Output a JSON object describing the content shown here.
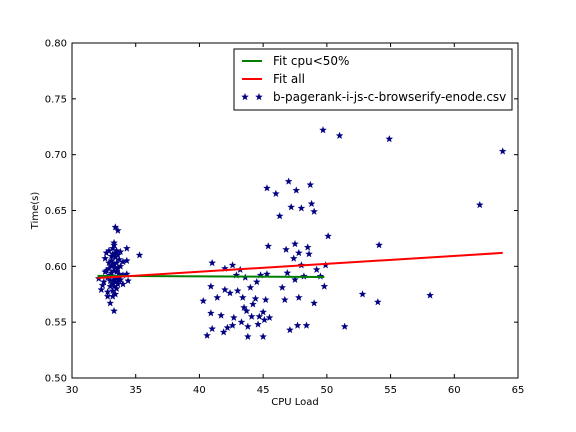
{
  "chart_data": {
    "type": "scatter",
    "xlabel": "CPU Load",
    "ylabel": "Time(s)",
    "xlim": [
      30,
      65
    ],
    "ylim": [
      0.5,
      0.8
    ],
    "xticks": [
      30,
      35,
      40,
      45,
      50,
      55,
      60,
      65
    ],
    "yticks": [
      0.5,
      0.55,
      0.6,
      0.65,
      0.7,
      0.75,
      0.8
    ],
    "xtick_labels": [
      "30",
      "35",
      "40",
      "45",
      "50",
      "55",
      "60",
      "65"
    ],
    "ytick_labels": [
      "0.50",
      "0.55",
      "0.60",
      "0.65",
      "0.70",
      "0.75",
      "0.80"
    ],
    "grid": false,
    "legend_position": "top-right",
    "colors": {
      "fit_low": "#007f00",
      "fit_all": "#ff0000",
      "points": "#000080"
    },
    "lines": [
      {
        "name": "Fit cpu<50%",
        "color": "#007f00",
        "x": [
          32,
          49.8
        ],
        "y": [
          0.5915,
          0.5905
        ]
      },
      {
        "name": "Fit all",
        "color": "#ff0000",
        "x": [
          32,
          63.8
        ],
        "y": [
          0.5895,
          0.612
        ]
      }
    ],
    "series": [
      {
        "name": "b-pagerank-i-js-c-browserify-enode.csv",
        "marker": "star",
        "color": "#000080",
        "points": [
          [
            32.1,
            0.589
          ],
          [
            32.3,
            0.579
          ],
          [
            32.4,
            0.583
          ],
          [
            32.5,
            0.586
          ],
          [
            32.6,
            0.595
          ],
          [
            32.6,
            0.607
          ],
          [
            32.7,
            0.612
          ],
          [
            32.7,
            0.596
          ],
          [
            32.8,
            0.59
          ],
          [
            32.8,
            0.577
          ],
          [
            32.8,
            0.573
          ],
          [
            32.9,
            0.603
          ],
          [
            32.9,
            0.614
          ],
          [
            32.9,
            0.598
          ],
          [
            33.0,
            0.592
          ],
          [
            33.0,
            0.587
          ],
          [
            33.0,
            0.582
          ],
          [
            33.0,
            0.567
          ],
          [
            33.1,
            0.605
          ],
          [
            33.1,
            0.609
          ],
          [
            33.1,
            0.6
          ],
          [
            33.1,
            0.594
          ],
          [
            33.2,
            0.616
          ],
          [
            33.2,
            0.611
          ],
          [
            33.2,
            0.584
          ],
          [
            33.2,
            0.578
          ],
          [
            33.2,
            0.573
          ],
          [
            33.3,
            0.621
          ],
          [
            33.3,
            0.619
          ],
          [
            33.3,
            0.602
          ],
          [
            33.3,
            0.596
          ],
          [
            33.3,
            0.588
          ],
          [
            33.3,
            0.582
          ],
          [
            33.3,
            0.56
          ],
          [
            33.4,
            0.635
          ],
          [
            33.4,
            0.612
          ],
          [
            33.4,
            0.608
          ],
          [
            33.4,
            0.599
          ],
          [
            33.4,
            0.586
          ],
          [
            33.4,
            0.575
          ],
          [
            33.5,
            0.614
          ],
          [
            33.5,
            0.603
          ],
          [
            33.5,
            0.595
          ],
          [
            33.5,
            0.589
          ],
          [
            33.5,
            0.58
          ],
          [
            33.6,
            0.632
          ],
          [
            33.6,
            0.61
          ],
          [
            33.6,
            0.598
          ],
          [
            33.6,
            0.591
          ],
          [
            33.6,
            0.584
          ],
          [
            33.7,
            0.606
          ],
          [
            33.7,
            0.593
          ],
          [
            33.7,
            0.587
          ],
          [
            33.8,
            0.613
          ],
          [
            33.8,
            0.6
          ],
          [
            33.8,
            0.588
          ],
          [
            34.0,
            0.604
          ],
          [
            34.0,
            0.592
          ],
          [
            34.0,
            0.584
          ],
          [
            34.3,
            0.616
          ],
          [
            34.3,
            0.605
          ],
          [
            34.3,
            0.593
          ],
          [
            34.4,
            0.587
          ],
          [
            35.3,
            0.61
          ],
          [
            40.3,
            0.569
          ],
          [
            40.6,
            0.538
          ],
          [
            40.9,
            0.558
          ],
          [
            40.9,
            0.582
          ],
          [
            41.0,
            0.603
          ],
          [
            41.0,
            0.544
          ],
          [
            41.4,
            0.572
          ],
          [
            41.7,
            0.556
          ],
          [
            41.9,
            0.541
          ],
          [
            42.0,
            0.598
          ],
          [
            42.0,
            0.579
          ],
          [
            42.2,
            0.545
          ],
          [
            42.4,
            0.576
          ],
          [
            42.6,
            0.601
          ],
          [
            42.6,
            0.547
          ],
          [
            42.7,
            0.554
          ],
          [
            42.9,
            0.592
          ],
          [
            43.0,
            0.578
          ],
          [
            43.2,
            0.597
          ],
          [
            43.3,
            0.55
          ],
          [
            43.4,
            0.572
          ],
          [
            43.5,
            0.563
          ],
          [
            43.6,
            0.59
          ],
          [
            43.7,
            0.56
          ],
          [
            43.8,
            0.546
          ],
          [
            43.8,
            0.537
          ],
          [
            44.0,
            0.581
          ],
          [
            44.1,
            0.555
          ],
          [
            44.2,
            0.566
          ],
          [
            44.4,
            0.571
          ],
          [
            44.5,
            0.586
          ],
          [
            44.6,
            0.548
          ],
          [
            44.7,
            0.555
          ],
          [
            44.8,
            0.592
          ],
          [
            45.0,
            0.537
          ],
          [
            45.0,
            0.559
          ],
          [
            45.1,
            0.552
          ],
          [
            45.2,
            0.57
          ],
          [
            45.3,
            0.593
          ],
          [
            45.3,
            0.67
          ],
          [
            45.4,
            0.618
          ],
          [
            45.5,
            0.554
          ],
          [
            46.0,
            0.665
          ],
          [
            46.3,
            0.645
          ],
          [
            46.5,
            0.581
          ],
          [
            46.7,
            0.57
          ],
          [
            46.8,
            0.615
          ],
          [
            46.9,
            0.594
          ],
          [
            47.0,
            0.676
          ],
          [
            47.1,
            0.543
          ],
          [
            47.2,
            0.653
          ],
          [
            47.4,
            0.607
          ],
          [
            47.5,
            0.62
          ],
          [
            47.5,
            0.588
          ],
          [
            47.6,
            0.668
          ],
          [
            47.7,
            0.547
          ],
          [
            47.8,
            0.612
          ],
          [
            47.8,
            0.572
          ],
          [
            48.0,
            0.601
          ],
          [
            48.0,
            0.652
          ],
          [
            48.2,
            0.591
          ],
          [
            48.4,
            0.547
          ],
          [
            48.5,
            0.617
          ],
          [
            48.6,
            0.611
          ],
          [
            48.7,
            0.673
          ],
          [
            48.8,
            0.656
          ],
          [
            49.0,
            0.649
          ],
          [
            49.0,
            0.567
          ],
          [
            49.2,
            0.597
          ],
          [
            49.5,
            0.591
          ],
          [
            49.7,
            0.722
          ],
          [
            49.8,
            0.582
          ],
          [
            49.9,
            0.601
          ],
          [
            50.1,
            0.627
          ],
          [
            51.0,
            0.717
          ],
          [
            51.4,
            0.546
          ],
          [
            52.8,
            0.575
          ],
          [
            54.0,
            0.568
          ],
          [
            54.1,
            0.619
          ],
          [
            54.9,
            0.714
          ],
          [
            58.1,
            0.574
          ],
          [
            62.0,
            0.655
          ],
          [
            63.8,
            0.703
          ]
        ]
      }
    ]
  }
}
